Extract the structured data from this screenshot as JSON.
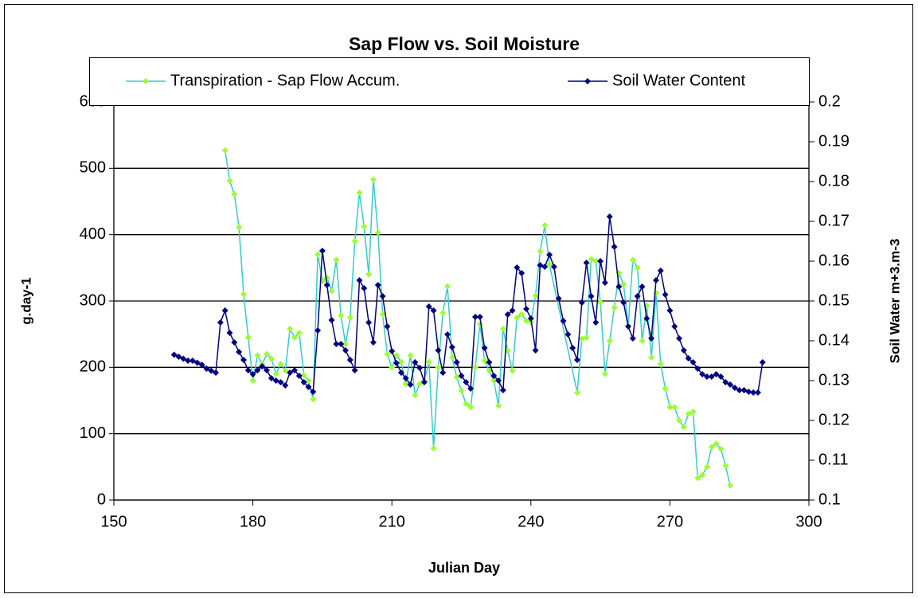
{
  "chart_data": {
    "type": "line",
    "title": "Sap Flow vs. Soil Moisture",
    "x_label": "Julian Day",
    "y_label": "g.day-1",
    "y2_label": "Soil Water m+3.m-3",
    "xlim": [
      150,
      300
    ],
    "xticks": [
      150,
      180,
      210,
      240,
      270,
      300
    ],
    "ylim": [
      0,
      600
    ],
    "yticks": [
      0,
      100,
      200,
      300,
      400,
      500,
      600
    ],
    "y2lim": [
      0.1,
      0.2
    ],
    "y2ticks": [
      0.1,
      0.11,
      0.12,
      0.13,
      0.14,
      0.15,
      0.16,
      0.17,
      0.18,
      0.19,
      0.2
    ],
    "grid": true,
    "legend": "top",
    "series": [
      {
        "name": "Transpiration - Sap Flow Accum.",
        "color": "#33cccc",
        "marker_color": "#99ff33",
        "x": [
          174,
          175,
          176,
          177,
          178,
          179,
          180,
          181,
          182,
          183,
          184,
          185,
          186,
          187,
          188,
          189,
          190,
          191,
          192,
          193,
          194,
          195,
          196,
          197,
          198,
          199,
          200,
          201,
          202,
          203,
          204,
          205,
          206,
          207,
          208,
          209,
          210,
          211,
          212,
          213,
          214,
          215,
          216,
          217,
          218,
          219,
          220,
          221,
          222,
          223,
          224,
          225,
          226,
          227,
          228,
          229,
          230,
          231,
          232,
          233,
          234,
          235,
          236,
          237,
          238,
          239,
          240,
          241,
          242,
          243,
          244,
          250,
          251,
          252,
          253,
          254,
          255,
          256,
          257,
          258,
          259,
          260,
          261,
          262,
          263,
          264,
          265,
          266,
          267,
          268,
          269,
          270,
          271,
          272,
          273,
          274,
          275,
          276,
          277,
          278,
          279,
          280,
          281,
          282,
          283
        ],
        "values": [
          527,
          481,
          461,
          411,
          310,
          245,
          180,
          218,
          205,
          220,
          213,
          190,
          205,
          195,
          258,
          245,
          252,
          188,
          180,
          152,
          370,
          330,
          335,
          315,
          362,
          278,
          235,
          275,
          390,
          463,
          412,
          340,
          483,
          403,
          280,
          220,
          200,
          218,
          208,
          175,
          218,
          158,
          175,
          180,
          208,
          78,
          200,
          282,
          322,
          215,
          185,
          165,
          145,
          140,
          200,
          265,
          210,
          195,
          180,
          142,
          258,
          225,
          195,
          275,
          280,
          270,
          268,
          308,
          375,
          414,
          355,
          162,
          243,
          245,
          363,
          360,
          298,
          190,
          240,
          290,
          342,
          325,
          262,
          362,
          350,
          240,
          293,
          215,
          312,
          205,
          168,
          140,
          140,
          120,
          110,
          130,
          133,
          33,
          38,
          50,
          80,
          85,
          77,
          52,
          22
        ]
      },
      {
        "name": "Soil Water Content",
        "color": "#000080",
        "marker_color": "#000080",
        "axis": "y2",
        "x": [
          163,
          164,
          165,
          166,
          167,
          168,
          169,
          170,
          171,
          172,
          173,
          174,
          175,
          176,
          177,
          178,
          179,
          180,
          181,
          182,
          183,
          184,
          185,
          186,
          187,
          188,
          189,
          190,
          191,
          192,
          193,
          194,
          195,
          196,
          197,
          198,
          199,
          200,
          201,
          202,
          203,
          204,
          205,
          206,
          207,
          208,
          209,
          210,
          211,
          212,
          213,
          214,
          215,
          216,
          217,
          218,
          219,
          220,
          221,
          222,
          223,
          224,
          225,
          226,
          227,
          228,
          229,
          230,
          231,
          232,
          233,
          234,
          235,
          236,
          237,
          238,
          239,
          240,
          241,
          242,
          243,
          244,
          245,
          246,
          247,
          248,
          249,
          250,
          251,
          252,
          253,
          254,
          255,
          256,
          257,
          258,
          259,
          260,
          261,
          262,
          263,
          264,
          265,
          266,
          267,
          268,
          269,
          270,
          271,
          272,
          273,
          274,
          275,
          276,
          277,
          278,
          279,
          280,
          281,
          282,
          283,
          284,
          285,
          286,
          287,
          288,
          289,
          290
        ],
        "values": [
          0.1365,
          0.136,
          0.1355,
          0.135,
          0.135,
          0.1345,
          0.134,
          0.133,
          0.1325,
          0.132,
          0.1446,
          0.1476,
          0.142,
          0.1396,
          0.1372,
          0.1352,
          0.1326,
          0.1316,
          0.1326,
          0.1336,
          0.1326,
          0.1306,
          0.13,
          0.1296,
          0.1288,
          0.132,
          0.1326,
          0.1312,
          0.1296,
          0.1284,
          0.1272,
          0.1426,
          0.1626,
          0.154,
          0.1452,
          0.1392,
          0.1392,
          0.1376,
          0.1352,
          0.1326,
          0.1552,
          0.1532,
          0.1446,
          0.1396,
          0.154,
          0.1512,
          0.1436,
          0.1374,
          0.1344,
          0.132,
          0.1306,
          0.129,
          0.1346,
          0.1332,
          0.1296,
          0.1486,
          0.1476,
          0.1376,
          0.132,
          0.1416,
          0.1384,
          0.1346,
          0.1312,
          0.1296,
          0.128,
          0.146,
          0.146,
          0.1382,
          0.1346,
          0.1312,
          0.13,
          0.1276,
          0.1466,
          0.1476,
          0.1584,
          0.157,
          0.148,
          0.1456,
          0.1376,
          0.159,
          0.1586,
          0.1616,
          0.1586,
          0.1506,
          0.145,
          0.1416,
          0.1382,
          0.1352,
          0.1496,
          0.1596,
          0.1512,
          0.1446,
          0.16,
          0.1546,
          0.1712,
          0.1636,
          0.1536,
          0.1496,
          0.1436,
          0.1406,
          0.1512,
          0.1536,
          0.1456,
          0.1406,
          0.1552,
          0.1576,
          0.1516,
          0.1476,
          0.1436,
          0.1406,
          0.1376,
          0.1356,
          0.1346,
          0.133,
          0.1316,
          0.131,
          0.131,
          0.1316,
          0.131,
          0.1296,
          0.129,
          0.1282,
          0.1276,
          0.1276,
          0.1272,
          0.127,
          0.127,
          0.1346
        ]
      }
    ]
  }
}
